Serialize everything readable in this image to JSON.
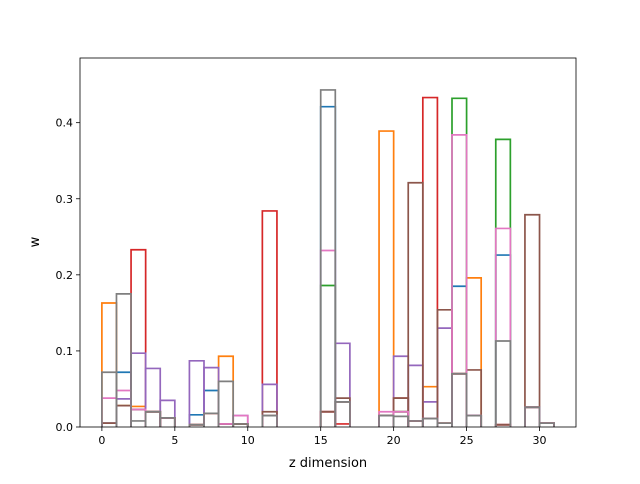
{
  "chart_data": {
    "type": "bar",
    "style": "step-histogram",
    "title": "",
    "xlabel": "z dimension",
    "ylabel": "w",
    "xlim": [
      -1.5,
      32.5
    ],
    "ylim": [
      0,
      0.485
    ],
    "x_ticks": [
      0,
      5,
      10,
      15,
      20,
      25,
      30
    ],
    "y_ticks": [
      0.0,
      0.1,
      0.2,
      0.3,
      0.4
    ],
    "x_tick_labels": [
      "0",
      "5",
      "10",
      "15",
      "20",
      "25",
      "30"
    ],
    "y_tick_labels": [
      "0.0",
      "0.1",
      "0.2",
      "0.3",
      "0.4"
    ],
    "grid": false,
    "legend": "none",
    "bin_width": 1,
    "bin_starts": [
      0,
      1,
      2,
      3,
      4,
      5,
      6,
      7,
      8,
      9,
      10,
      11,
      12,
      13,
      14,
      15,
      16,
      17,
      18,
      19,
      20,
      21,
      22,
      23,
      24,
      25,
      26,
      27,
      28,
      29,
      30
    ],
    "series": [
      {
        "color": "#1f77b4",
        "values": [
          0.005,
          0.072,
          0.023,
          0.02,
          0.012,
          0,
          0.016,
          0.048,
          0,
          0.004,
          0,
          0.015,
          0,
          0,
          0,
          0.421,
          0.033,
          0,
          0,
          0.015,
          0.02,
          0.008,
          0.011,
          0.005,
          0.185,
          0.015,
          0,
          0.226,
          0,
          0.026,
          0.005
        ]
      },
      {
        "color": "#ff7f0e",
        "values": [
          0.163,
          0.028,
          0.027,
          0.02,
          0.012,
          0,
          0.003,
          0.018,
          0.093,
          0.004,
          0,
          0.015,
          0,
          0,
          0,
          0.02,
          0.033,
          0,
          0,
          0.389,
          0.02,
          0.008,
          0.053,
          0.005,
          0.07,
          0.196,
          0,
          0.003,
          0,
          0.026,
          0.005
        ]
      },
      {
        "color": "#2ca02c",
        "values": [
          0.005,
          0.028,
          0.023,
          0.02,
          0.012,
          0,
          0.003,
          0.018,
          0.004,
          0.004,
          0,
          0.015,
          0,
          0,
          0,
          0.186,
          0.033,
          0,
          0,
          0.015,
          0.02,
          0.008,
          0.011,
          0.005,
          0.432,
          0.015,
          0,
          0.378,
          0,
          0.026,
          0.005
        ]
      },
      {
        "color": "#d62728",
        "values": [
          0.005,
          0.028,
          0.233,
          0.02,
          0.012,
          0,
          0.003,
          0.018,
          0.004,
          0.004,
          0,
          0.284,
          0,
          0,
          0,
          0.02,
          0.004,
          0,
          0,
          0.015,
          0.038,
          0.008,
          0.433,
          0.005,
          0.07,
          0.015,
          0,
          0.003,
          0,
          0.026,
          0.005
        ]
      },
      {
        "color": "#9467bd",
        "values": [
          0.005,
          0.037,
          0.097,
          0.077,
          0.035,
          0,
          0.087,
          0.078,
          0.004,
          0.015,
          0,
          0.056,
          0,
          0,
          0,
          0.02,
          0.11,
          0,
          0,
          0.015,
          0.093,
          0.081,
          0.033,
          0.13,
          0.07,
          0.015,
          0,
          0.003,
          0,
          0.026,
          0.005
        ]
      },
      {
        "color": "#8c564b",
        "values": [
          0.005,
          0.028,
          0.023,
          0.02,
          0.012,
          0,
          0.003,
          0.018,
          0.004,
          0.004,
          0,
          0.02,
          0,
          0,
          0,
          0.02,
          0.038,
          0,
          0,
          0.015,
          0.038,
          0.321,
          0.011,
          0.154,
          0.07,
          0.075,
          0,
          0.003,
          0,
          0.279,
          0.005
        ]
      },
      {
        "color": "#e377c2",
        "values": [
          0.038,
          0.048,
          0.023,
          0.02,
          0.012,
          0,
          0.003,
          0.018,
          0.004,
          0.015,
          0,
          0.015,
          0,
          0,
          0,
          0.232,
          0.033,
          0,
          0,
          0.02,
          0.02,
          0.008,
          0.011,
          0.005,
          0.384,
          0.015,
          0,
          0.261,
          0,
          0.026,
          0.005
        ]
      },
      {
        "color": "#7f7f7f",
        "values": [
          0.072,
          0.175,
          0.008,
          0.02,
          0.012,
          0,
          0.003,
          0.018,
          0.06,
          0.004,
          0,
          0.015,
          0,
          0,
          0,
          0.443,
          0.033,
          0,
          0,
          0.015,
          0.014,
          0.008,
          0.011,
          0.005,
          0.07,
          0.015,
          0,
          0.113,
          0,
          0.026,
          0.005
        ]
      }
    ]
  }
}
